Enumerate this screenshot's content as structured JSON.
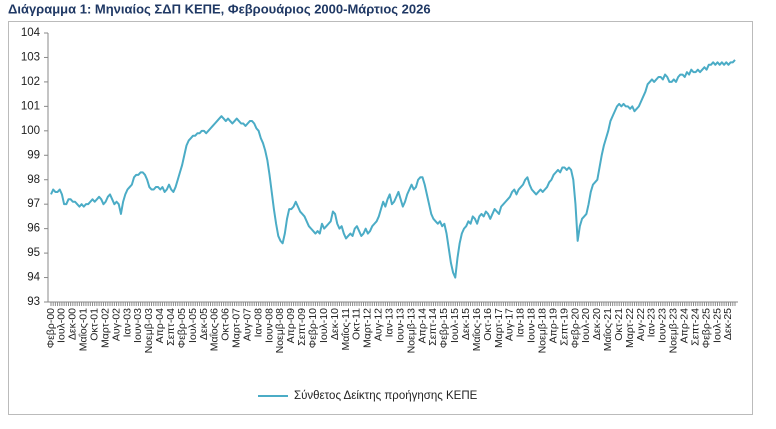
{
  "chart_data": {
    "type": "line",
    "title": "Διάγραμμα 1: Μηνιαίος ΣΔΠ ΚΕΠΕ, Φεβρουάριος 2000-Μάρτιος 2026",
    "categories": [
      "Φεβρ-00",
      null,
      null,
      null,
      null,
      "Ιουλ-00",
      null,
      null,
      null,
      null,
      "Δεκ-00",
      null,
      null,
      null,
      null,
      "Μαΐος-01",
      null,
      null,
      null,
      null,
      "Οκτ-01",
      null,
      null,
      null,
      null,
      "Μαρτ-02",
      null,
      null,
      null,
      null,
      "Αυγ-02",
      null,
      null,
      null,
      null,
      "Ιαν-03",
      null,
      null,
      null,
      null,
      "Ιουν-03",
      null,
      null,
      null,
      null,
      "Νοεμβ-03",
      null,
      null,
      null,
      null,
      "Απρ-04",
      null,
      null,
      null,
      null,
      "Σεπτ-04",
      null,
      null,
      null,
      null,
      "Φεβρ-05",
      null,
      null,
      null,
      null,
      "Ιουλ-05",
      null,
      null,
      null,
      null,
      "Δεκ-05",
      null,
      null,
      null,
      null,
      "Μαΐος-06",
      null,
      null,
      null,
      null,
      "Οκτ-06",
      null,
      null,
      null,
      null,
      "Μαρτ-07",
      null,
      null,
      null,
      null,
      "Αυγ-07",
      null,
      null,
      null,
      null,
      "Ιαν-08",
      null,
      null,
      null,
      null,
      "Ιουν-08",
      null,
      null,
      null,
      null,
      "Νοεμβ-08",
      null,
      null,
      null,
      null,
      "Απρ-09",
      null,
      null,
      null,
      null,
      "Σεπτ-09",
      null,
      null,
      null,
      null,
      "Φεβρ-10",
      null,
      null,
      null,
      null,
      "Ιουλ-10",
      null,
      null,
      null,
      null,
      "Δεκ-10",
      null,
      null,
      null,
      null,
      "Μαΐος-11",
      null,
      null,
      null,
      null,
      "Οκτ-11",
      null,
      null,
      null,
      null,
      "Μαρτ-12",
      null,
      null,
      null,
      null,
      "Αυγ-12",
      null,
      null,
      null,
      null,
      "Ιαν-13",
      null,
      null,
      null,
      null,
      "Ιουν-13",
      null,
      null,
      null,
      null,
      "Νοεμβ-13",
      null,
      null,
      null,
      null,
      "Απρ-14",
      null,
      null,
      null,
      null,
      "Σεπτ-14",
      null,
      null,
      null,
      null,
      "Φεβρ-15",
      null,
      null,
      null,
      null,
      "Ιουλ-15",
      null,
      null,
      null,
      null,
      "Δεκ-15",
      null,
      null,
      null,
      null,
      "Μαΐος-16",
      null,
      null,
      null,
      null,
      "Οκτ-16",
      null,
      null,
      null,
      null,
      "Μαρτ-17",
      null,
      null,
      null,
      null,
      "Αυγ-17",
      null,
      null,
      null,
      null,
      "Ιαν-18",
      null,
      null,
      null,
      null,
      "Ιουν-18",
      null,
      null,
      null,
      null,
      "Νοεμβ-18",
      null,
      null,
      null,
      null,
      "Απρ-19",
      null,
      null,
      null,
      null,
      "Σεπτ-19",
      null,
      null,
      null,
      null,
      "Φεβρ-20",
      null,
      null,
      null,
      null,
      "Ιουλ-20",
      null,
      null,
      null,
      null,
      "Δεκ-20",
      null,
      null,
      null,
      null,
      "Μαΐος-21",
      null,
      null,
      null,
      null,
      "Οκτ-21",
      null,
      null,
      null,
      null,
      "Μαρτ-22",
      null,
      null,
      null,
      null,
      "Αυγ-22",
      null,
      null,
      null,
      null,
      "Ιαν-23",
      null,
      null,
      null,
      null,
      "Ιουν-23",
      null,
      null,
      null,
      null,
      "Νοεμβ-23",
      null,
      null,
      null,
      null,
      "Απρ-24",
      null,
      null,
      null,
      null,
      "Σεπτ-24",
      null,
      null,
      null,
      null,
      "Φεβρ-25",
      null,
      null,
      null,
      null,
      "Ιουλ-25",
      null,
      null,
      null,
      null,
      "Δεκ-25",
      null,
      null,
      null
    ],
    "series": [
      {
        "name": "Σύνθετος Δείκτης προήγησης ΚΕΠΕ",
        "color": "#4bacc6",
        "values": [
          97.4,
          97.6,
          97.5,
          97.5,
          97.6,
          97.4,
          97.0,
          97.0,
          97.2,
          97.2,
          97.1,
          97.1,
          97.0,
          96.9,
          97.0,
          96.9,
          97.0,
          97.0,
          97.1,
          97.2,
          97.1,
          97.2,
          97.3,
          97.2,
          97.0,
          97.1,
          97.3,
          97.4,
          97.2,
          97.0,
          97.1,
          97.0,
          96.6,
          97.1,
          97.4,
          97.6,
          97.7,
          97.8,
          98.1,
          98.2,
          98.2,
          98.3,
          98.3,
          98.2,
          98.0,
          97.7,
          97.6,
          97.6,
          97.7,
          97.7,
          97.6,
          97.7,
          97.5,
          97.6,
          97.8,
          97.6,
          97.5,
          97.7,
          98.0,
          98.3,
          98.6,
          99.0,
          99.4,
          99.6,
          99.7,
          99.8,
          99.8,
          99.9,
          99.9,
          100.0,
          100.0,
          99.9,
          100.0,
          100.1,
          100.2,
          100.3,
          100.4,
          100.5,
          100.6,
          100.5,
          100.4,
          100.5,
          100.4,
          100.3,
          100.4,
          100.5,
          100.4,
          100.3,
          100.3,
          100.2,
          100.3,
          100.4,
          100.4,
          100.3,
          100.1,
          100.0,
          99.7,
          99.5,
          99.2,
          98.8,
          98.2,
          97.5,
          96.8,
          96.2,
          95.7,
          95.5,
          95.4,
          95.8,
          96.4,
          96.8,
          96.8,
          96.9,
          97.1,
          96.9,
          96.7,
          96.6,
          96.5,
          96.3,
          96.1,
          96.0,
          95.9,
          95.8,
          95.9,
          95.8,
          96.2,
          96.0,
          96.1,
          96.2,
          96.3,
          96.7,
          96.6,
          96.2,
          96.0,
          96.1,
          95.8,
          95.6,
          95.7,
          95.8,
          95.7,
          96.0,
          96.1,
          95.9,
          95.7,
          95.8,
          96.0,
          95.8,
          95.9,
          96.1,
          96.2,
          96.3,
          96.5,
          96.8,
          97.1,
          96.9,
          97.2,
          97.4,
          97.0,
          97.1,
          97.3,
          97.5,
          97.2,
          96.9,
          97.1,
          97.4,
          97.6,
          97.8,
          97.6,
          97.7,
          98.0,
          98.1,
          98.1,
          97.8,
          97.4,
          97.0,
          96.6,
          96.4,
          96.3,
          96.2,
          96.3,
          96.1,
          96.2,
          95.8,
          95.2,
          94.6,
          94.2,
          94.0,
          94.8,
          95.4,
          95.8,
          96.0,
          96.1,
          96.3,
          96.2,
          96.5,
          96.4,
          96.2,
          96.5,
          96.6,
          96.5,
          96.7,
          96.6,
          96.4,
          96.6,
          96.8,
          96.7,
          96.6,
          96.9,
          97.0,
          97.1,
          97.2,
          97.3,
          97.5,
          97.6,
          97.4,
          97.6,
          97.7,
          97.8,
          98.0,
          98.1,
          97.8,
          97.6,
          97.5,
          97.4,
          97.5,
          97.6,
          97.5,
          97.6,
          97.7,
          97.9,
          98.0,
          98.2,
          98.3,
          98.4,
          98.3,
          98.5,
          98.5,
          98.4,
          98.5,
          98.4,
          98.0,
          97.0,
          95.5,
          96.1,
          96.4,
          96.5,
          96.6,
          97.0,
          97.5,
          97.8,
          97.9,
          98.0,
          98.5,
          99.0,
          99.4,
          99.7,
          100.0,
          100.4,
          100.6,
          100.8,
          101.0,
          101.1,
          101.0,
          101.1,
          101.0,
          101.0,
          100.9,
          101.0,
          100.8,
          100.9,
          101.0,
          101.2,
          101.4,
          101.6,
          101.9,
          102.0,
          102.1,
          102.0,
          102.1,
          102.2,
          102.2,
          102.1,
          102.3,
          102.2,
          102.0,
          102.0,
          102.1,
          102.0,
          102.2,
          102.3,
          102.3,
          102.2,
          102.4,
          102.3,
          102.5,
          102.4,
          102.4,
          102.5,
          102.4,
          102.5,
          102.6,
          102.5,
          102.7,
          102.7,
          102.8,
          102.7,
          102.8,
          102.7,
          102.8,
          102.7,
          102.8,
          102.7,
          102.8,
          102.8,
          102.9
        ]
      }
    ],
    "ylim": [
      93,
      104
    ],
    "yticks": [
      93,
      94,
      95,
      96,
      97,
      98,
      99,
      100,
      101,
      102,
      103,
      104
    ],
    "grid": false
  }
}
